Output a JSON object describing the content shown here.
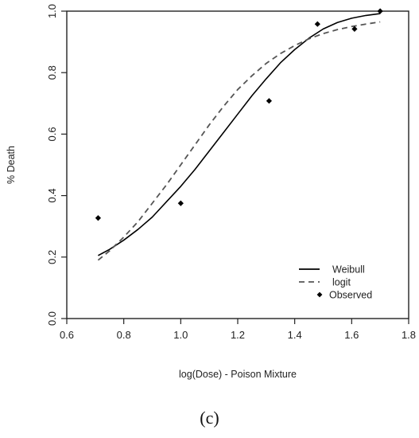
{
  "chart_data": {
    "type": "line",
    "xlabel": "log(Dose) - Poison Mixture",
    "ylabel": "% Death",
    "xlim": [
      0.6,
      1.8
    ],
    "ylim": [
      0.0,
      1.0
    ],
    "x_ticks": [
      "0.6",
      "0.8",
      "1.0",
      "1.2",
      "1.4",
      "1.6",
      "1.8"
    ],
    "y_ticks": [
      "0.0",
      "0.2",
      "0.4",
      "0.6",
      "0.8",
      "1.0"
    ],
    "grid": false,
    "legend_position": "bottom-right",
    "series": [
      {
        "name": "Weibull",
        "style": "solid",
        "color": "#000000",
        "x": [
          0.71,
          0.75,
          0.8,
          0.85,
          0.9,
          0.95,
          1.0,
          1.05,
          1.1,
          1.15,
          1.2,
          1.25,
          1.3,
          1.35,
          1.4,
          1.45,
          1.5,
          1.55,
          1.6,
          1.65,
          1.7
        ],
        "y": [
          0.205,
          0.225,
          0.255,
          0.29,
          0.33,
          0.38,
          0.43,
          0.485,
          0.545,
          0.605,
          0.665,
          0.725,
          0.78,
          0.832,
          0.875,
          0.912,
          0.942,
          0.963,
          0.977,
          0.986,
          0.992
        ]
      },
      {
        "name": "logit",
        "style": "dashed",
        "color": "#555555",
        "x": [
          0.71,
          0.75,
          0.8,
          0.85,
          0.9,
          0.95,
          1.0,
          1.05,
          1.1,
          1.15,
          1.2,
          1.25,
          1.3,
          1.35,
          1.4,
          1.45,
          1.5,
          1.55,
          1.6,
          1.65,
          1.7
        ],
        "y": [
          0.19,
          0.22,
          0.265,
          0.315,
          0.375,
          0.435,
          0.5,
          0.565,
          0.63,
          0.69,
          0.745,
          0.79,
          0.83,
          0.862,
          0.888,
          0.91,
          0.927,
          0.94,
          0.95,
          0.958,
          0.965
        ]
      },
      {
        "name": "Observed",
        "style": "points",
        "marker": "diamond",
        "color": "#000000",
        "x": [
          0.71,
          1.0,
          1.31,
          1.48,
          1.61,
          1.7
        ],
        "y": [
          0.327,
          0.375,
          0.708,
          0.958,
          0.942,
          1.0
        ]
      }
    ],
    "legend": [
      {
        "label": "Weibull",
        "style": "solid"
      },
      {
        "label": "logit",
        "style": "dashed"
      },
      {
        "label": "Observed",
        "style": "points"
      }
    ]
  },
  "caption": "(c)"
}
